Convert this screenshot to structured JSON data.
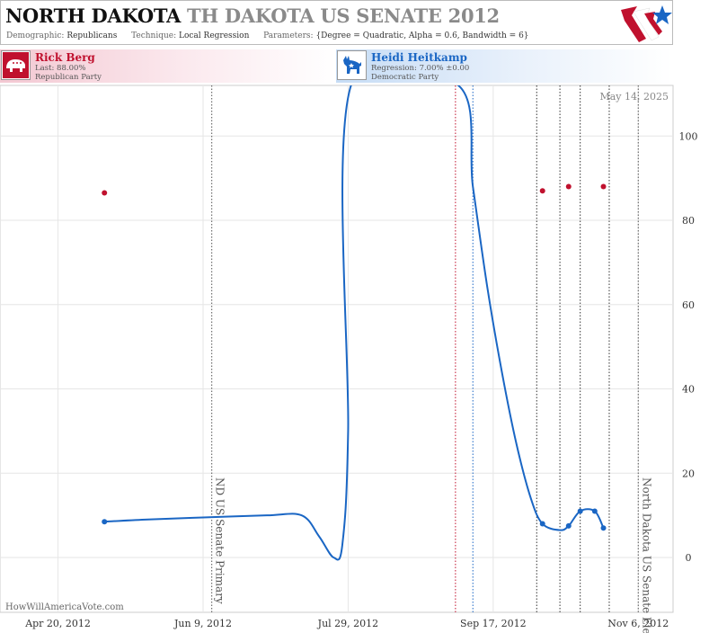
{
  "header": {
    "state": "NORTH DAKOTA",
    "race": "TH DAKOTA US SENATE 2012",
    "demographic_label": "Demographic:",
    "demographic": "Republicans",
    "technique_label": "Technique:",
    "technique": "Local Regression",
    "parameters_label": "Parameters:",
    "parameters": "{Degree = Quadratic, Alpha = 0.6, Bandwidth = 6}"
  },
  "candidates": {
    "rep": {
      "name": "Rick Berg",
      "line1": "Last: 88.00%",
      "line2": "Republican Party",
      "color": "#c0112e",
      "icon": "elephant-icon"
    },
    "dem": {
      "name": "Heidi Heitkamp",
      "line1": "Regression: 7.00% ±0.00",
      "line2": "Democratic Party",
      "color": "#1a66c4",
      "icon": "donkey-icon"
    }
  },
  "chart_data": {
    "type": "line",
    "date_label": "May 14, 2025",
    "watermark": "HowWillAmericaVote.com",
    "x_ticks": [
      "Apr 20, 2012",
      "Jun 9, 2012",
      "Jul 29, 2012",
      "Sep 17, 2012",
      "Nov 6, 2012"
    ],
    "y_ticks": [
      0,
      20,
      40,
      60,
      80,
      100
    ],
    "ylim": [
      -13,
      112
    ],
    "xlim": [
      "2012-03-31",
      "2012-11-18"
    ],
    "grid": true,
    "events": [
      {
        "label": "ND US Senate Primary",
        "date": "2012-06-12"
      },
      {
        "label": "North Dakota US Senate Election",
        "date": "2012-11-06"
      }
    ],
    "marker_lines": [
      {
        "date": "2012-09-04",
        "color": "#c0112e"
      },
      {
        "date": "2012-09-10",
        "color": "#1a66c4"
      },
      {
        "date": "2012-10-02",
        "color": "#333333"
      },
      {
        "date": "2012-10-10",
        "color": "#333333"
      },
      {
        "date": "2012-10-17",
        "color": "#333333"
      },
      {
        "date": "2012-10-27",
        "color": "#333333"
      }
    ],
    "series": [
      {
        "name": "Rick Berg",
        "color": "#c0112e",
        "points": [
          {
            "x": "2012-05-06",
            "y": 86.5
          },
          {
            "x": "2012-10-04",
            "y": 87
          },
          {
            "x": "2012-10-13",
            "y": 88
          },
          {
            "x": "2012-10-25",
            "y": 88
          }
        ]
      },
      {
        "name": "Heidi Heitkamp",
        "color": "#1a66c4",
        "points": [
          {
            "x": "2012-05-06",
            "y": 8.5
          },
          {
            "x": "2012-10-04",
            "y": 8
          },
          {
            "x": "2012-10-13",
            "y": 7.5
          },
          {
            "x": "2012-10-17",
            "y": 11
          },
          {
            "x": "2012-10-22",
            "y": 11
          },
          {
            "x": "2012-10-25",
            "y": 7
          }
        ],
        "curve": [
          {
            "x": "2012-05-06",
            "y": 8.5
          },
          {
            "x": "2012-05-20",
            "y": 9
          },
          {
            "x": "2012-06-09",
            "y": 9.5
          },
          {
            "x": "2012-07-01",
            "y": 10
          },
          {
            "x": "2012-07-13",
            "y": 10
          },
          {
            "x": "2012-07-19",
            "y": 5
          },
          {
            "x": "2012-07-24",
            "y": 0
          },
          {
            "x": "2012-07-27",
            "y": 3
          },
          {
            "x": "2012-07-29",
            "y": 30
          },
          {
            "x": "2012-07-30",
            "y": 112
          },
          {
            "x": "2012-09-05",
            "y": 112
          },
          {
            "x": "2012-09-10",
            "y": 88
          },
          {
            "x": "2012-09-15",
            "y": 64
          },
          {
            "x": "2012-09-20",
            "y": 44
          },
          {
            "x": "2012-09-25",
            "y": 27
          },
          {
            "x": "2012-09-30",
            "y": 14
          },
          {
            "x": "2012-10-04",
            "y": 8
          },
          {
            "x": "2012-10-10",
            "y": 6.5
          },
          {
            "x": "2012-10-13",
            "y": 7.5
          },
          {
            "x": "2012-10-17",
            "y": 11
          },
          {
            "x": "2012-10-22",
            "y": 11
          },
          {
            "x": "2012-10-25",
            "y": 7
          }
        ]
      }
    ]
  }
}
